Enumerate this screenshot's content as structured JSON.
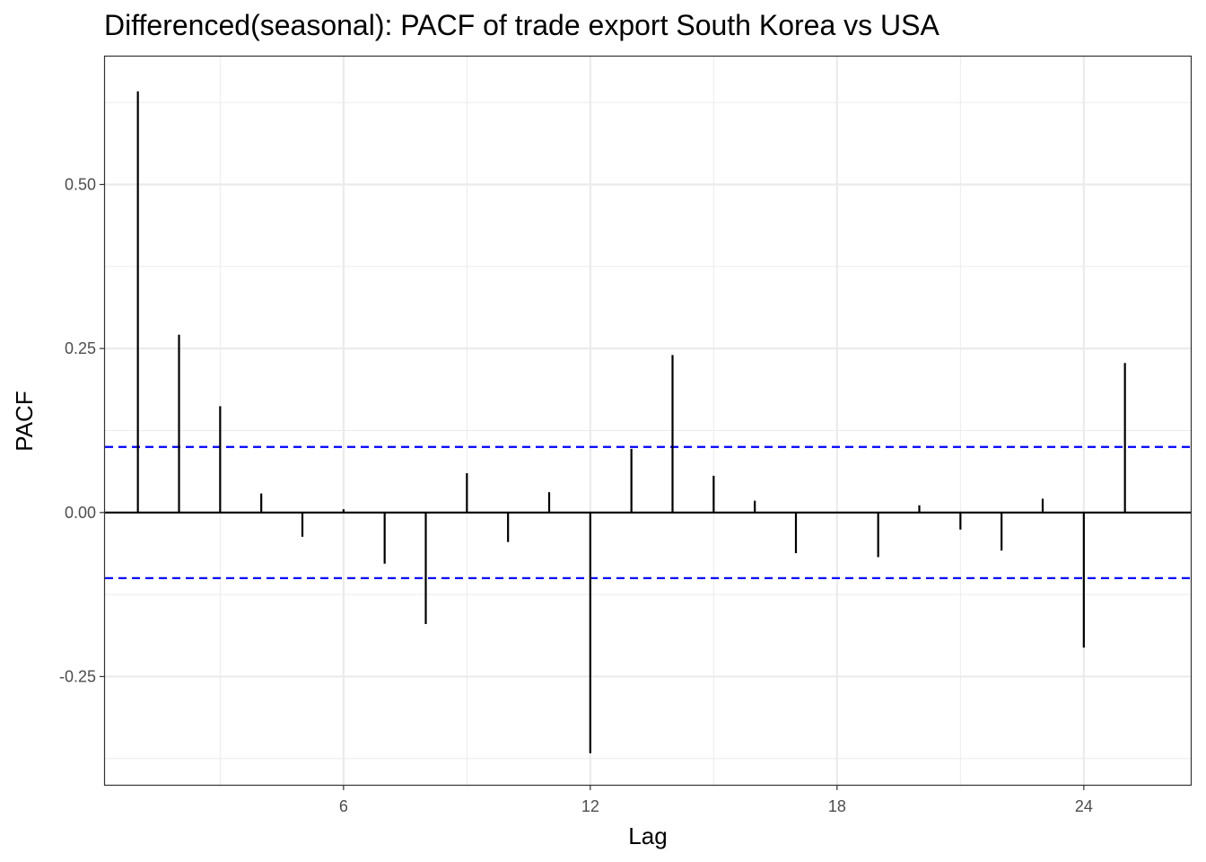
{
  "chart_data": {
    "type": "bar",
    "title": "Differenced(seasonal): PACF of trade export South Korea vs USA",
    "xlabel": "Lag",
    "ylabel": "PACF",
    "x_ticks": [
      6,
      12,
      18,
      24
    ],
    "y_ticks": [
      -0.25,
      0.0,
      0.25,
      0.5
    ],
    "y_tick_labels": [
      "-0.25",
      "0.00",
      "0.25",
      "0.50"
    ],
    "xlim": [
      0.2,
      26.6
    ],
    "ylim": [
      -0.415,
      0.695
    ],
    "grid": true,
    "lags": [
      1,
      2,
      3,
      4,
      5,
      6,
      7,
      8,
      9,
      10,
      11,
      12,
      13,
      14,
      15,
      16,
      17,
      18,
      19,
      20,
      21,
      22,
      23,
      24,
      25
    ],
    "values": [
      0.642,
      0.271,
      0.162,
      0.029,
      -0.037,
      0.005,
      -0.078,
      -0.17,
      0.06,
      -0.045,
      0.031,
      -0.367,
      0.097,
      0.24,
      0.056,
      0.018,
      -0.062,
      0.0,
      -0.068,
      0.011,
      -0.026,
      -0.058,
      0.021,
      -0.206,
      0.228
    ],
    "confidence_bounds": [
      0.1,
      -0.1
    ],
    "colors": {
      "bars": "#000000",
      "confidence_lines": "#0000ff",
      "grid": "#ebebeb",
      "panel_border": "#333333"
    }
  }
}
